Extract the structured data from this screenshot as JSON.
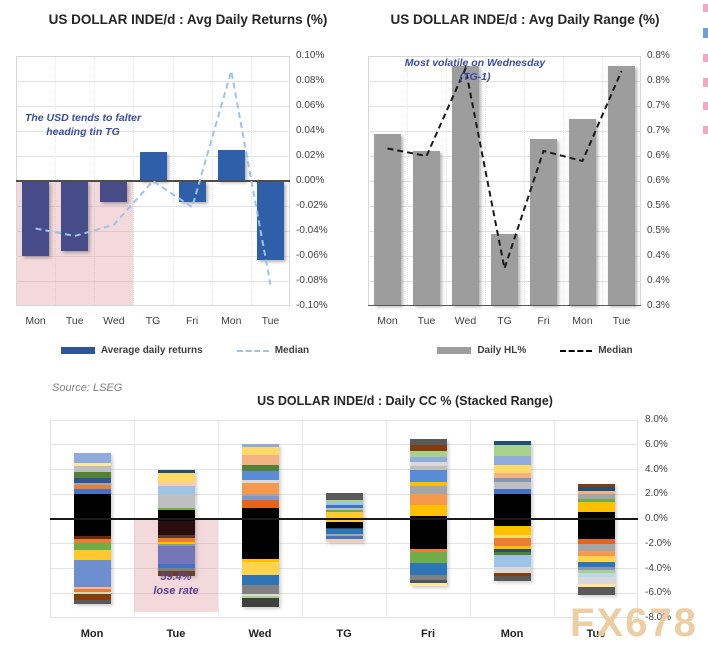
{
  "page": {
    "source_note": "Source: LSEG",
    "watermark": "FX678"
  },
  "chart_data": [
    {
      "id": "avg-daily-returns",
      "type": "bar",
      "title": "US DOLLAR INDE/d : Avg Daily Returns (%)",
      "annotation": "The USD tends to falter heading tin TG",
      "categories": [
        "Mon",
        "Tue",
        "Wed",
        "TG",
        "Fri",
        "Mon",
        "Tue"
      ],
      "xlabel": "",
      "ylabel": "",
      "ylim": [
        -0.1,
        0.1
      ],
      "y_tick_labels": [
        "0.10%",
        "0.08%",
        "0.06%",
        "0.04%",
        "0.02%",
        "0.00%",
        "-0.02%",
        "-0.04%",
        "-0.06%",
        "-0.08%",
        "-0.10%"
      ],
      "grid": true,
      "legend_position": "bottom",
      "series": [
        {
          "name": "Average daily returns",
          "type": "bar",
          "legend_color": "#2F5597",
          "values": [
            -0.06,
            -0.056,
            -0.017,
            0.023,
            -0.017,
            0.025,
            -0.063
          ],
          "bar_colors": [
            "#474B88",
            "#474B88",
            "#474B88",
            "#2E5FA8",
            "#2E5FA8",
            "#2E5FA8",
            "#2E5FA8"
          ]
        },
        {
          "name": "Median",
          "type": "dashed-line",
          "legend_color": "#9DC3E6",
          "color": "#9DC3E6",
          "values": [
            -0.038,
            -0.044,
            -0.035,
            0.0,
            -0.021,
            0.088,
            -0.083
          ]
        }
      ],
      "highlight": {
        "color": "rgba(224,156,160,0.38)",
        "span_categories": 3,
        "from_value": 0
      }
    },
    {
      "id": "avg-daily-range",
      "type": "bar",
      "title": "US DOLLAR INDE/d : Avg Daily Range (%)",
      "annotation": "Most volatile on Wednesday (TG-1)",
      "categories": [
        "Mon",
        "Tue",
        "Wed",
        "TG",
        "Fri",
        "Mon",
        "Tue"
      ],
      "xlabel": "",
      "ylabel": "",
      "ylim": [
        0.3,
        0.8
      ],
      "y_tick_labels": [
        "0.8%",
        "0.8%",
        "0.7%",
        "0.7%",
        "0.6%",
        "0.6%",
        "0.5%",
        "0.5%",
        "0.4%",
        "0.4%",
        "0.3%"
      ],
      "grid": true,
      "legend_position": "bottom",
      "series": [
        {
          "name": "Daily HL%",
          "type": "bar",
          "legend_color": "#9D9D9D",
          "values": [
            0.645,
            0.61,
            0.78,
            0.445,
            0.635,
            0.675,
            0.78
          ],
          "bar_colors": [
            "#9D9D9D",
            "#9D9D9D",
            "#9D9D9D",
            "#9D9D9D",
            "#9D9D9D",
            "#9D9D9D",
            "#9D9D9D"
          ]
        },
        {
          "name": "Median",
          "type": "dashed-line",
          "legend_color": "#000000",
          "color": "#1a1a1a",
          "values": [
            0.615,
            0.6,
            0.775,
            0.375,
            0.61,
            0.59,
            0.77
          ]
        }
      ]
    },
    {
      "id": "daily-cc-stacked",
      "type": "bar",
      "subtype": "stacked-range",
      "title": "US DOLLAR INDE/d : Daily CC % (Stacked Range)",
      "categories": [
        "Mon",
        "Tue",
        "Wed",
        "TG",
        "Fri",
        "Mon",
        "Tue"
      ],
      "xlabel": "",
      "ylabel": "",
      "ylim": [
        -8.0,
        8.0
      ],
      "y_tick_labels": [
        "8.0%",
        "6.0%",
        "4.0%",
        "2.0%",
        "0.0%",
        "-2.0%",
        "-4.0%",
        "-6.0%",
        "-8.0%"
      ],
      "grid": true,
      "highlight": {
        "category_index": 1,
        "color": "rgba(224,156,160,0.38)",
        "lines": [
          "59.4%",
          "lose rate"
        ]
      },
      "days": [
        {
          "label": "Mon",
          "above_zero": 5.35,
          "segments": [
            {
              "color": "#8FAADC",
              "size": 0.85
            },
            {
              "color": "#FFE699",
              "size": 0.2
            },
            {
              "color": "#BFBFBF",
              "size": 0.5
            },
            {
              "color": "#548235",
              "size": 0.5
            },
            {
              "color": "#2F5597",
              "size": 0.4
            },
            {
              "color": "#A6A6A6",
              "size": 0.15
            },
            {
              "color": "#ED7D31",
              "size": 0.35
            },
            {
              "color": "#4472C4",
              "size": 0.4
            },
            {
              "color": "#000000",
              "size": 3.4
            },
            {
              "color": "#6B2B12",
              "size": 0.2
            },
            {
              "color": "#ED7D31",
              "size": 0.35
            },
            {
              "color": "#70AD47",
              "size": 0.6
            },
            {
              "color": "#FFC82E",
              "size": 0.75
            },
            {
              "color": "#6D8FD0",
              "size": 2.2
            },
            {
              "color": "#F2B8A2",
              "size": 0.2
            },
            {
              "color": "#ED7D31",
              "size": 0.2
            },
            {
              "color": "#C5E0B4",
              "size": 0.15
            },
            {
              "color": "#843C0C",
              "size": 0.5
            },
            {
              "color": "#595959",
              "size": 0.35
            }
          ]
        },
        {
          "label": "Tue",
          "above_zero": 4.0,
          "segments": [
            {
              "color": "#1F4E79",
              "size": 0.25
            },
            {
              "color": "#FFD966",
              "size": 0.8
            },
            {
              "color": "#F8CBAD",
              "size": 0.3
            },
            {
              "color": "#9DC3E6",
              "size": 0.65
            },
            {
              "color": "#BFBFBF",
              "size": 1.1
            },
            {
              "color": "#70AD47",
              "size": 0.2
            },
            {
              "color": "#000000",
              "size": 0.9
            },
            {
              "color": "#2B0D0D",
              "size": 1.1
            },
            {
              "color": "#5B3A29",
              "size": 0.25
            },
            {
              "color": "#ED7D31",
              "size": 0.3
            },
            {
              "color": "#FFC000",
              "size": 0.2
            },
            {
              "color": "#8496B0",
              "size": 0.15
            },
            {
              "color": "#7575B8",
              "size": 1.45
            },
            {
              "color": "#4472C4",
              "size": 0.3
            },
            {
              "color": "#808080",
              "size": 0.3
            },
            {
              "color": "#6B4226",
              "size": 0.35
            }
          ]
        },
        {
          "label": "Wed",
          "above_zero": 6.1,
          "segments": [
            {
              "color": "#8FAADC",
              "size": 0.3
            },
            {
              "color": "#FFD966",
              "size": 0.65
            },
            {
              "color": "#F4B183",
              "size": 0.8
            },
            {
              "color": "#548235",
              "size": 0.5
            },
            {
              "color": "#5B8BD5",
              "size": 0.7
            },
            {
              "color": "#D9D9D9",
              "size": 0.25
            },
            {
              "color": "#F4994E",
              "size": 0.85
            },
            {
              "color": "#A6A6A6",
              "size": 0.2
            },
            {
              "color": "#8496C8",
              "size": 0.3
            },
            {
              "color": "#E2641E",
              "size": 0.65
            },
            {
              "color": "#000000",
              "size": 4.1
            },
            {
              "color": "#FFC000",
              "size": 0.25
            },
            {
              "color": "#FFD34D",
              "size": 1.05
            },
            {
              "color": "#2E75B6",
              "size": 0.85
            },
            {
              "color": "#808080",
              "size": 0.7
            },
            {
              "color": "#D9D9D9",
              "size": 0.2
            },
            {
              "color": "#A9D18E",
              "size": 0.15
            },
            {
              "color": "#404040",
              "size": 0.7
            }
          ]
        },
        {
          "label": "TG",
          "above_zero": 2.1,
          "segments": [
            {
              "color": "#595959",
              "size": 0.55
            },
            {
              "color": "#A9D18E",
              "size": 0.2
            },
            {
              "color": "#9DC3E6",
              "size": 0.25
            },
            {
              "color": "#4472C4",
              "size": 0.2
            },
            {
              "color": "#BFBFBF",
              "size": 0.15
            },
            {
              "color": "#70AD47",
              "size": 0.15
            },
            {
              "color": "#FFC931",
              "size": 0.85
            },
            {
              "color": "#000000",
              "size": 0.45
            },
            {
              "color": "#1F4E79",
              "size": 0.15
            },
            {
              "color": "#2E75B6",
              "size": 0.35
            },
            {
              "color": "#A6A6A6",
              "size": 0.15
            },
            {
              "color": "#4472C4",
              "size": 0.25
            },
            {
              "color": "#F8CBAD",
              "size": 0.25
            }
          ]
        },
        {
          "label": "Fri",
          "above_zero": 6.5,
          "segments": [
            {
              "color": "#595959",
              "size": 0.55
            },
            {
              "color": "#843C0C",
              "size": 0.45
            },
            {
              "color": "#A9D18E",
              "size": 0.5
            },
            {
              "color": "#8FAADC",
              "size": 0.4
            },
            {
              "color": "#D9D9D9",
              "size": 0.3
            },
            {
              "color": "#BFBFBF",
              "size": 0.35
            },
            {
              "color": "#5B8BD5",
              "size": 1.0
            },
            {
              "color": "#FFC000",
              "size": 0.25
            },
            {
              "color": "#A6A6A6",
              "size": 0.7
            },
            {
              "color": "#F4994E",
              "size": 0.85
            },
            {
              "color": "#FFC000",
              "size": 0.95
            },
            {
              "color": "#000000",
              "size": 2.6
            },
            {
              "color": "#ED7D31",
              "size": 0.25
            },
            {
              "color": "#70AD47",
              "size": 0.95
            },
            {
              "color": "#2E75B6",
              "size": 0.9
            },
            {
              "color": "#808080",
              "size": 0.45
            },
            {
              "color": "#44546A",
              "size": 0.25
            },
            {
              "color": "#FFE699",
              "size": 0.25
            }
          ]
        },
        {
          "label": "Mon",
          "above_zero": 6.3,
          "segments": [
            {
              "color": "#1F4E79",
              "size": 0.3
            },
            {
              "color": "#A9D18E",
              "size": 0.9
            },
            {
              "color": "#8FAADC",
              "size": 0.7
            },
            {
              "color": "#FFD966",
              "size": 0.7
            },
            {
              "color": "#F4B183",
              "size": 0.4
            },
            {
              "color": "#8496B0",
              "size": 0.3
            },
            {
              "color": "#BFBFBF",
              "size": 0.6
            },
            {
              "color": "#4472C4",
              "size": 0.35
            },
            {
              "color": "#000000",
              "size": 2.6
            },
            {
              "color": "#FFC000",
              "size": 0.75
            },
            {
              "color": "#FFD966",
              "size": 0.25
            },
            {
              "color": "#ED7D31",
              "size": 0.65
            },
            {
              "color": "#FFC000",
              "size": 0.25
            },
            {
              "color": "#1F4E79",
              "size": 0.25
            },
            {
              "color": "#548235",
              "size": 0.25
            },
            {
              "color": "#9DC3E6",
              "size": 0.95
            },
            {
              "color": "#D9D9D9",
              "size": 0.5
            },
            {
              "color": "#843C0C",
              "size": 0.25
            },
            {
              "color": "#595959",
              "size": 0.4
            }
          ]
        },
        {
          "label": "Tue",
          "above_zero": 2.85,
          "segments": [
            {
              "color": "#843C0C",
              "size": 0.25
            },
            {
              "color": "#1F4E79",
              "size": 0.3
            },
            {
              "color": "#F4B183",
              "size": 0.25
            },
            {
              "color": "#A6A6A6",
              "size": 0.45
            },
            {
              "color": "#70AD47",
              "size": 0.25
            },
            {
              "color": "#FFC000",
              "size": 0.8
            },
            {
              "color": "#000000",
              "size": 2.15
            },
            {
              "color": "#E2641E",
              "size": 0.45
            },
            {
              "color": "#A6A6A6",
              "size": 0.55
            },
            {
              "color": "#F4994E",
              "size": 0.4
            },
            {
              "color": "#FFD34D",
              "size": 0.5
            },
            {
              "color": "#2E75B6",
              "size": 0.4
            },
            {
              "color": "#8496B0",
              "size": 0.25
            },
            {
              "color": "#A9D18E",
              "size": 0.2
            },
            {
              "color": "#BDD7EE",
              "size": 0.35
            },
            {
              "color": "#D9D9D9",
              "size": 0.6
            },
            {
              "color": "#FFE699",
              "size": 0.2
            },
            {
              "color": "#595959",
              "size": 0.65
            }
          ]
        }
      ]
    }
  ]
}
